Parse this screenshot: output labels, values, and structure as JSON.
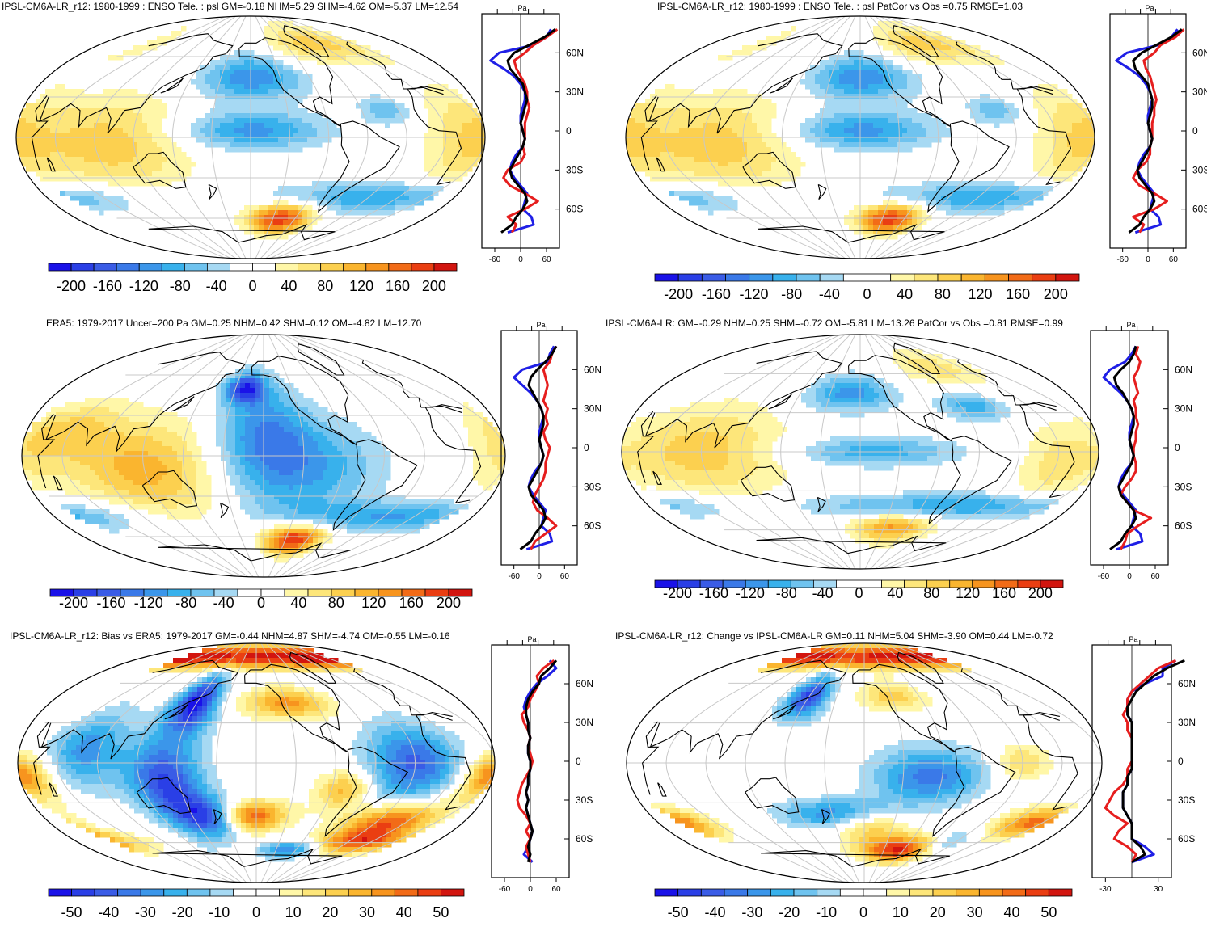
{
  "colors": {
    "land_stroke": "#000000",
    "grid": "#c8c8c8",
    "model_line": "#000000",
    "obs_line": "#1f1fe6",
    "diff_line": "#e61e1e"
  },
  "palette": [
    "#1a12e8",
    "#2a3fe6",
    "#3a5ce6",
    "#3a79e8",
    "#3b96ea",
    "#38b1ec",
    "#6fc3ef",
    "#a6d9f3",
    "#ffffff",
    "#ffffff",
    "#fff7a8",
    "#fde67a",
    "#fcd04f",
    "#fab52f",
    "#f7941e",
    "#f26b17",
    "#ea3e12",
    "#d2150f"
  ],
  "chart_data": [
    {
      "type": "heatmap",
      "id": "p1",
      "title": "IPSL-CM6A-LR_r12: 1980-1999 : ENSO Tele. : psl GM=-0.18 NHM=5.29 SHM=-4.62 OM=-5.37 LM=12.54",
      "colorbar_ticks": [
        "-200",
        "-160",
        "-120",
        "-80",
        "-40",
        "0",
        "40",
        "80",
        "120",
        "160",
        "200"
      ],
      "field": "enso_model",
      "profile": {
        "unit": "Pa",
        "lat_ticks": [
          "60N",
          "30N",
          "0",
          "30S",
          "60S"
        ],
        "x_ticks": [
          "-60",
          "0",
          "60"
        ],
        "xlim": [
          -90,
          90
        ],
        "lat": [
          78,
          72,
          66,
          60,
          54,
          48,
          42,
          36,
          30,
          24,
          18,
          12,
          6,
          0,
          -6,
          -12,
          -18,
          -24,
          -30,
          -36,
          -42,
          -48,
          -54,
          -60,
          -66,
          -72,
          -78
        ],
        "series": [
          {
            "name": "model",
            "values": [
              80,
              55,
              20,
              -15,
              -30,
              -25,
              -10,
              5,
              10,
              15,
              10,
              5,
              0,
              5,
              10,
              5,
              -5,
              -15,
              -25,
              -20,
              -5,
              10,
              15,
              5,
              -10,
              -20,
              -45
            ]
          },
          {
            "name": "obs",
            "values": [
              70,
              60,
              30,
              -50,
              -70,
              -40,
              -15,
              0,
              10,
              10,
              5,
              0,
              0,
              5,
              10,
              5,
              -10,
              -20,
              -25,
              -15,
              0,
              15,
              10,
              5,
              25,
              30,
              -30
            ]
          },
          {
            "name": "diff",
            "values": [
              85,
              60,
              30,
              10,
              -15,
              -10,
              0,
              10,
              15,
              15,
              20,
              15,
              10,
              10,
              10,
              5,
              10,
              0,
              -30,
              -40,
              -25,
              10,
              40,
              10,
              -30,
              -10,
              -20
            ]
          }
        ]
      }
    },
    {
      "type": "heatmap",
      "id": "p2",
      "title": "IPSL-CM6A-LR_r12: 1980-1999 : ENSO Tele. : psl PatCor vs Obs =0.75 RMSE=1.03",
      "colorbar_ticks": [
        "-200",
        "-160",
        "-120",
        "-80",
        "-40",
        "0",
        "40",
        "80",
        "120",
        "160",
        "200"
      ],
      "field": "enso_model",
      "profile": {
        "unit": "Pa",
        "lat_ticks": [
          "60N",
          "30N",
          "0",
          "30S",
          "60S"
        ],
        "x_ticks": [
          "-60",
          "0",
          "60"
        ],
        "xlim": [
          -90,
          90
        ],
        "lat": [
          78,
          72,
          66,
          60,
          54,
          48,
          42,
          36,
          30,
          24,
          18,
          12,
          6,
          0,
          -6,
          -12,
          -18,
          -24,
          -30,
          -36,
          -42,
          -48,
          -54,
          -60,
          -66,
          -72,
          -78
        ],
        "series": [
          {
            "name": "model",
            "values": [
              80,
              55,
              20,
              -15,
              -35,
              -30,
              -15,
              0,
              5,
              10,
              10,
              5,
              0,
              5,
              10,
              5,
              -5,
              -15,
              -25,
              -20,
              -5,
              10,
              15,
              5,
              -10,
              -20,
              -45
            ]
          },
          {
            "name": "obs",
            "values": [
              70,
              55,
              25,
              -50,
              -75,
              -45,
              -20,
              -5,
              5,
              10,
              5,
              0,
              0,
              5,
              10,
              5,
              -10,
              -20,
              -25,
              -15,
              0,
              15,
              10,
              5,
              25,
              30,
              -30
            ]
          },
          {
            "name": "diff",
            "values": [
              85,
              65,
              30,
              15,
              -10,
              -5,
              5,
              10,
              15,
              20,
              15,
              15,
              10,
              10,
              10,
              5,
              5,
              -5,
              -25,
              -35,
              -20,
              15,
              45,
              15,
              -35,
              -10,
              -20
            ]
          }
        ]
      }
    },
    {
      "type": "heatmap",
      "id": "p3",
      "title": "ERA5: 1979-2017 Uncer=200 Pa GM=0.25 NHM=0.42 SHM=0.12 OM=-4.82 LM=12.70",
      "colorbar_ticks": [
        "-200",
        "-160",
        "-120",
        "-80",
        "-40",
        "0",
        "40",
        "80",
        "120",
        "160",
        "200"
      ],
      "field": "enso_obs",
      "profile": {
        "unit": "Pa",
        "lat_ticks": [
          "60N",
          "30N",
          "0",
          "30S",
          "60S"
        ],
        "x_ticks": [
          "-60",
          "0",
          "60"
        ],
        "xlim": [
          -90,
          90
        ],
        "lat": [
          78,
          72,
          66,
          60,
          54,
          48,
          42,
          36,
          30,
          24,
          18,
          12,
          6,
          0,
          -6,
          -12,
          -18,
          -24,
          -30,
          -36,
          -42,
          -48,
          -54,
          -60,
          -66,
          -72,
          -78
        ],
        "series": [
          {
            "name": "model",
            "values": [
              40,
              30,
              15,
              -5,
              -20,
              -25,
              -15,
              -5,
              5,
              10,
              10,
              5,
              0,
              5,
              10,
              5,
              -5,
              -15,
              -25,
              -20,
              -5,
              10,
              15,
              5,
              -10,
              -20,
              -45
            ]
          },
          {
            "name": "obs",
            "values": [
              35,
              25,
              20,
              -40,
              -60,
              -40,
              -20,
              -5,
              5,
              10,
              5,
              0,
              0,
              5,
              10,
              5,
              -10,
              -20,
              -25,
              -15,
              0,
              15,
              10,
              5,
              25,
              30,
              -30
            ]
          },
          {
            "name": "diff",
            "values": [
              40,
              30,
              25,
              10,
              15,
              20,
              15,
              10,
              20,
              15,
              20,
              10,
              15,
              25,
              20,
              15,
              15,
              10,
              0,
              -10,
              -15,
              -5,
              20,
              40,
              15,
              -10,
              -20
            ]
          }
        ]
      }
    },
    {
      "type": "heatmap",
      "id": "p4",
      "title": "IPSL-CM6A-LR: GM=-0.29 NHM=0.25 SHM=-0.72 OM=-5.81 LM=13.26 PatCor vs Obs =0.81 RMSE=0.99",
      "colorbar_ticks": [
        "-200",
        "-160",
        "-120",
        "-80",
        "-40",
        "0",
        "40",
        "80",
        "120",
        "160",
        "200"
      ],
      "field": "enso_mm",
      "profile": {
        "unit": "Pa",
        "lat_ticks": [
          "60N",
          "30N",
          "0",
          "30S",
          "60S"
        ],
        "x_ticks": [
          "-60",
          "0",
          "60"
        ],
        "xlim": [
          -90,
          90
        ],
        "lat": [
          78,
          72,
          66,
          60,
          54,
          48,
          42,
          36,
          30,
          24,
          18,
          12,
          6,
          0,
          -6,
          -12,
          -18,
          -24,
          -30,
          -36,
          -42,
          -48,
          -54,
          -60,
          -66,
          -72,
          -78
        ],
        "series": [
          {
            "name": "model",
            "values": [
              15,
              10,
              0,
              -20,
              -35,
              -30,
              -15,
              -5,
              5,
              10,
              10,
              5,
              0,
              5,
              10,
              5,
              -5,
              -15,
              -25,
              -20,
              -5,
              10,
              15,
              5,
              -10,
              -20,
              -45
            ]
          },
          {
            "name": "obs",
            "values": [
              15,
              5,
              -10,
              -45,
              -60,
              -40,
              -20,
              -5,
              5,
              10,
              5,
              0,
              0,
              5,
              10,
              5,
              -10,
              -20,
              -25,
              -15,
              0,
              15,
              10,
              5,
              25,
              30,
              -30
            ]
          },
          {
            "name": "diff",
            "values": [
              20,
              15,
              25,
              20,
              10,
              15,
              20,
              10,
              15,
              15,
              20,
              15,
              15,
              10,
              10,
              15,
              15,
              5,
              -10,
              -20,
              -5,
              10,
              50,
              20,
              -5,
              -10,
              -20
            ]
          }
        ]
      }
    },
    {
      "type": "heatmap",
      "id": "p5",
      "title": "IPSL-CM6A-LR_r12: Bias vs ERA5: 1979-2017 GM=-0.44 NHM=4.87 SHM=-4.74 OM=-0.55 LM=-0.16",
      "colorbar_ticks": [
        "-50",
        "-40",
        "-30",
        "-20",
        "-10",
        "0",
        "10",
        "20",
        "30",
        "40",
        "50"
      ],
      "field": "bias",
      "profile": {
        "unit": "Pa",
        "lat_ticks": [
          "60N",
          "30N",
          "0",
          "30S",
          "60S"
        ],
        "x_ticks": [
          "-60",
          "0",
          "60"
        ],
        "xlim": [
          -90,
          90
        ],
        "lat": [
          78,
          72,
          66,
          60,
          54,
          48,
          42,
          36,
          30,
          24,
          18,
          12,
          6,
          0,
          -6,
          -12,
          -18,
          -24,
          -30,
          -36,
          -42,
          -48,
          -54,
          -60,
          -66,
          -72,
          -78
        ],
        "series": [
          {
            "name": "model",
            "values": [
              60,
              45,
              25,
              20,
              5,
              -5,
              -10,
              -10,
              -5,
              -5,
              0,
              -5,
              -5,
              0,
              0,
              -5,
              -5,
              -10,
              -5,
              -10,
              -5,
              0,
              5,
              0,
              -5,
              0,
              -5
            ]
          },
          {
            "name": "obs",
            "values": [
              45,
              60,
              40,
              15,
              0,
              -10,
              -15,
              -10,
              -5,
              -5,
              0,
              -5,
              -5,
              0,
              0,
              -5,
              -5,
              -10,
              -5,
              -10,
              -5,
              0,
              5,
              0,
              -5,
              -15,
              5
            ]
          },
          {
            "name": "diff",
            "values": [
              55,
              30,
              15,
              20,
              10,
              0,
              -5,
              -20,
              -15,
              -5,
              0,
              -5,
              0,
              5,
              0,
              -10,
              -20,
              -25,
              -30,
              -25,
              -10,
              0,
              -10,
              0,
              -10,
              -5,
              0
            ]
          }
        ]
      }
    },
    {
      "type": "heatmap",
      "id": "p6",
      "title": "IPSL-CM6A-LR_r12: Change vs IPSL-CM6A-LR GM=0.11 NHM=5.04 SHM=-3.90 OM=0.44 LM=-0.72",
      "colorbar_ticks": [
        "-50",
        "-40",
        "-30",
        "-20",
        "-10",
        "0",
        "10",
        "20",
        "30",
        "40",
        "50"
      ],
      "field": "change",
      "profile": {
        "unit": "Pa",
        "lat_ticks": [
          "60N",
          "30N",
          "0",
          "30S",
          "60S"
        ],
        "x_ticks": [
          "-30",
          "30"
        ],
        "xlim": [
          -45,
          45
        ],
        "lat": [
          78,
          72,
          66,
          60,
          54,
          48,
          42,
          36,
          30,
          24,
          18,
          12,
          6,
          0,
          -6,
          -12,
          -18,
          -24,
          -30,
          -36,
          -42,
          -48,
          -54,
          -60,
          -66,
          -72,
          -78
        ],
        "series": [
          {
            "name": "model",
            "values": [
              60,
              40,
              25,
              15,
              5,
              0,
              -5,
              -5,
              0,
              0,
              0,
              0,
              0,
              0,
              0,
              -5,
              -5,
              -10,
              -10,
              -10,
              -5,
              0,
              0,
              0,
              10,
              15,
              0
            ]
          },
          {
            "name": "obs",
            "values": [
              50,
              35,
              35,
              15,
              0,
              -5,
              -5,
              -5,
              0,
              0,
              0,
              0,
              0,
              0,
              0,
              -5,
              -5,
              -10,
              -10,
              -10,
              -5,
              0,
              0,
              0,
              15,
              25,
              0
            ]
          },
          {
            "name": "diff",
            "values": [
              50,
              30,
              20,
              10,
              0,
              -5,
              -5,
              -10,
              -5,
              -5,
              0,
              0,
              0,
              0,
              -5,
              -5,
              -10,
              -20,
              -25,
              -30,
              -20,
              -5,
              -15,
              -20,
              -5,
              5,
              0
            ]
          }
        ]
      }
    }
  ]
}
